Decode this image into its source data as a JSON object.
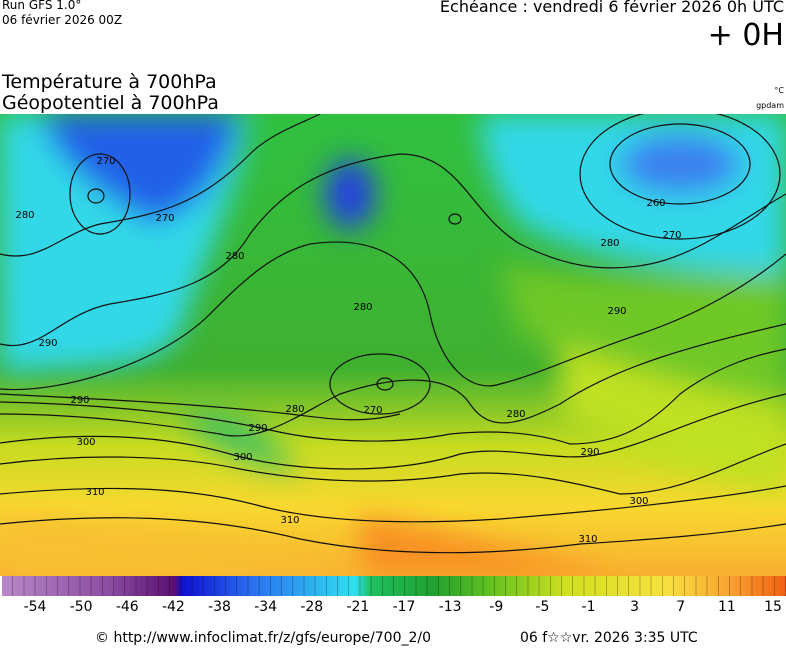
{
  "header": {
    "run": "Run GFS 1.0°",
    "date": "06 février 2026 00Z",
    "echeance": "Echéance : vendredi 6 février 2026 0h UTC",
    "offset": "+ 0H"
  },
  "titles": [
    "Température à 700hPa",
    "Géopotentiel à 700hPa"
  ],
  "units": {
    "temperature": "°C",
    "geopotential": "gpdam"
  },
  "contour_labels": [
    "270",
    "280",
    "270",
    "280",
    "280",
    "270",
    "290",
    "290",
    "280",
    "290",
    "300",
    "300",
    "300",
    "310",
    "310",
    "310",
    "280",
    "290",
    "260",
    "270",
    "280",
    "290"
  ],
  "colorbar": {
    "labels": [
      "-54",
      "-50",
      "-46",
      "-42",
      "-38",
      "-34",
      "-28",
      "-21",
      "-17",
      "-13",
      "-9",
      "-5",
      "-1",
      "3",
      "7",
      "11",
      "15"
    ]
  },
  "footer": {
    "source": "© http://www.infoclimat.fr/z/gfs/europe/700_2/0",
    "timestamp": "06 f☆☆vr. 2026  3:35 UTC"
  }
}
